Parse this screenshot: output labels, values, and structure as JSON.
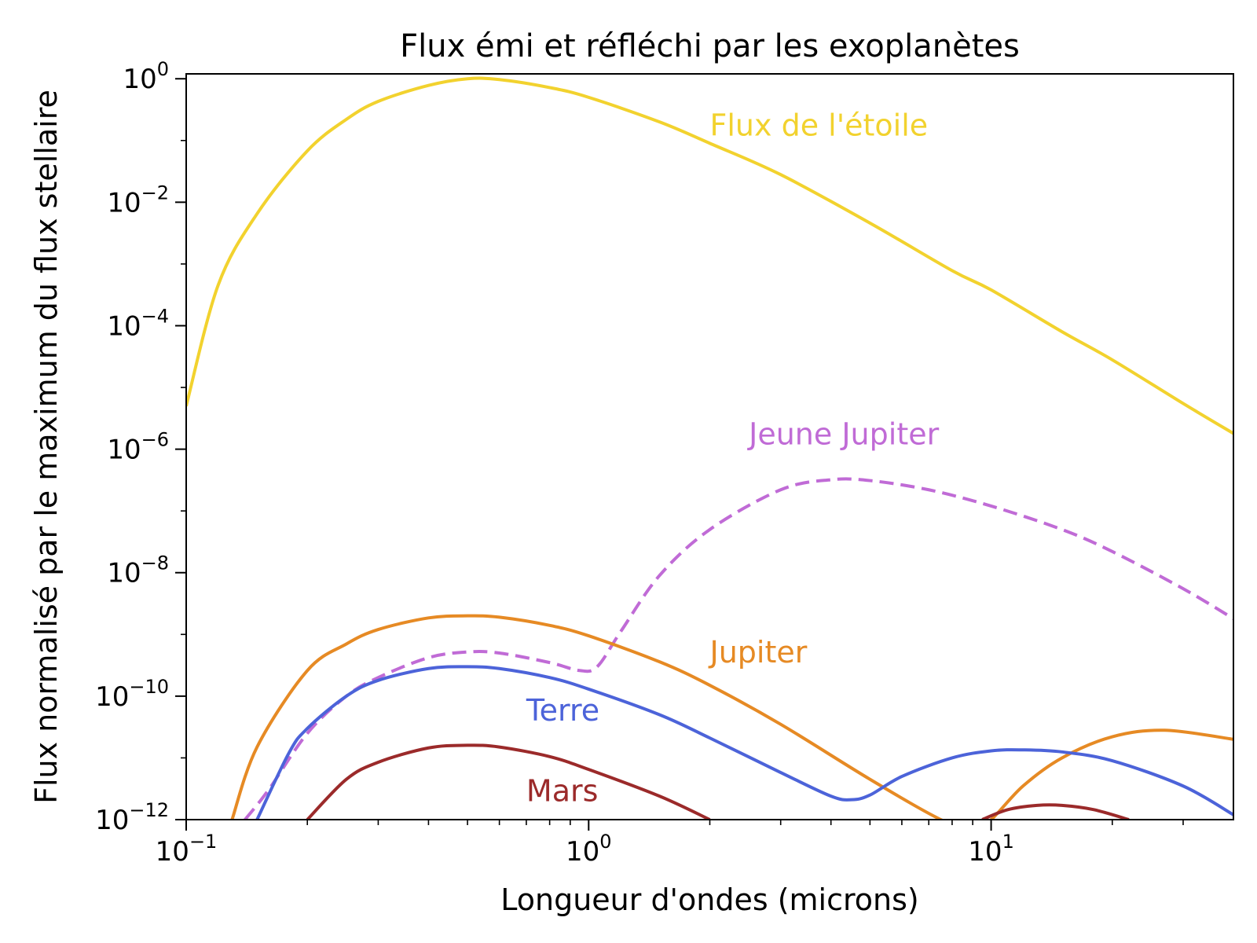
{
  "chart_data": {
    "type": "line",
    "title": "Flux émi et réfléchi par les exoplanètes",
    "xlabel": "Longueur d'ondes (microns)",
    "ylabel": "Flux normalisé par le maximum du flux stellaire",
    "xscale": "log",
    "yscale": "log",
    "xlim": [
      0.1,
      40
    ],
    "ylim": [
      1e-12,
      1.2
    ],
    "x_ticks": [
      {
        "value": 0.1,
        "base": "10",
        "exp": "−1"
      },
      {
        "value": 1,
        "base": "10",
        "exp": "0"
      },
      {
        "value": 10,
        "base": "10",
        "exp": "1"
      }
    ],
    "y_ticks": [
      {
        "value": 1,
        "base": "10",
        "exp": "0"
      },
      {
        "value": 0.01,
        "base": "10",
        "exp": "−2"
      },
      {
        "value": 0.0001,
        "base": "10",
        "exp": "−4"
      },
      {
        "value": 1e-06,
        "base": "10",
        "exp": "−6"
      },
      {
        "value": 1e-08,
        "base": "10",
        "exp": "−8"
      },
      {
        "value": 1e-10,
        "base": "10",
        "exp": "−10"
      },
      {
        "value": 1e-12,
        "base": "10",
        "exp": "−12"
      }
    ],
    "grid": false,
    "series": [
      {
        "name": "Flux de l'étoile",
        "color": "#f2d22e",
        "dash": "solid",
        "label_at": [
          2.0,
          0.12
        ],
        "x": [
          0.1,
          0.12,
          0.15,
          0.2,
          0.25,
          0.3,
          0.4,
          0.5,
          0.6,
          0.8,
          1.0,
          1.5,
          2,
          3,
          5,
          8,
          10,
          15,
          20,
          30,
          40
        ],
        "y": [
          5e-06,
          0.00045,
          0.0065,
          0.068,
          0.22,
          0.43,
          0.78,
          1.0,
          0.97,
          0.72,
          0.5,
          0.2,
          0.09,
          0.028,
          0.0046,
          0.00078,
          0.00038,
          8e-05,
          2.8e-05,
          5.5e-06,
          1.8e-06
        ]
      },
      {
        "name": "Jeune Jupiter",
        "color": "#c06bd6",
        "dash": "dashed",
        "label_at": [
          2.5,
          1.2e-06
        ],
        "x": [
          0.14,
          0.16,
          0.2,
          0.25,
          0.3,
          0.4,
          0.5,
          0.6,
          0.8,
          0.95,
          1.05,
          1.2,
          1.5,
          2,
          3,
          4,
          5,
          7,
          10,
          15,
          20,
          30,
          40
        ],
        "y": [
          1e-12,
          3e-12,
          2.5e-11,
          1e-10,
          2e-10,
          4.2e-10,
          5.2e-10,
          5e-10,
          3.5e-10,
          2.6e-10,
          3e-10,
          1.1e-09,
          9e-09,
          5e-08,
          2.2e-07,
          3.2e-07,
          3.1e-07,
          2.2e-07,
          1.2e-07,
          5e-08,
          2.2e-08,
          5.5e-09,
          1.8e-09
        ]
      },
      {
        "name": "Jupiter",
        "color": "#e68a24",
        "dash": "solid",
        "label_at": [
          2.0,
          3.5e-10
        ],
        "x": [
          0.13,
          0.15,
          0.2,
          0.25,
          0.3,
          0.4,
          0.5,
          0.6,
          0.8,
          1.0,
          1.5,
          2,
          3,
          5,
          7.5,
          9,
          10,
          12,
          15,
          20,
          27,
          40
        ],
        "y": [
          1e-12,
          1.5e-11,
          2.6e-10,
          7e-10,
          1.2e-09,
          1.85e-09,
          2e-09,
          1.9e-09,
          1.4e-09,
          9.5e-10,
          3.6e-10,
          1.5e-10,
          3.5e-11,
          4.5e-12,
          1e-12,
          7e-13,
          1e-12,
          3.5e-12,
          1e-11,
          2.2e-11,
          2.8e-11,
          2e-11
        ]
      },
      {
        "name": "Terre",
        "color": "#4c63d9",
        "dash": "solid",
        "label_at": [
          0.7,
          4e-11
        ],
        "x": [
          0.15,
          0.18,
          0.2,
          0.25,
          0.3,
          0.4,
          0.5,
          0.6,
          0.8,
          1.0,
          1.5,
          2,
          3,
          4,
          4.5,
          5,
          6,
          8,
          10,
          12,
          15,
          20,
          30,
          40
        ],
        "y": [
          1e-12,
          1.2e-11,
          3e-11,
          1e-10,
          1.8e-10,
          2.8e-10,
          3e-10,
          2.8e-10,
          2e-10,
          1.3e-10,
          5e-11,
          2.1e-11,
          5.8e-12,
          2.4e-12,
          2.1e-12,
          2.5e-12,
          5e-12,
          1e-11,
          1.3e-11,
          1.35e-11,
          1.25e-11,
          9e-12,
          3.5e-12,
          1.2e-12
        ]
      },
      {
        "name": "Mars",
        "color": "#9b2a2a",
        "dash": "solid",
        "label_at": [
          0.7,
          2e-12
        ],
        "x": [
          0.2,
          0.25,
          0.3,
          0.4,
          0.5,
          0.6,
          0.8,
          1.0,
          1.5,
          2.0
        ],
        "y": [
          1e-12,
          4.5e-12,
          8.5e-12,
          1.45e-11,
          1.6e-11,
          1.5e-11,
          1.05e-11,
          6.5e-12,
          2.4e-12,
          1e-12
        ],
        "x2": [
          9.5,
          11,
          13,
          15,
          18,
          22
        ],
        "y2": [
          1e-12,
          1.45e-12,
          1.7e-12,
          1.7e-12,
          1.45e-12,
          1e-12
        ]
      }
    ]
  }
}
